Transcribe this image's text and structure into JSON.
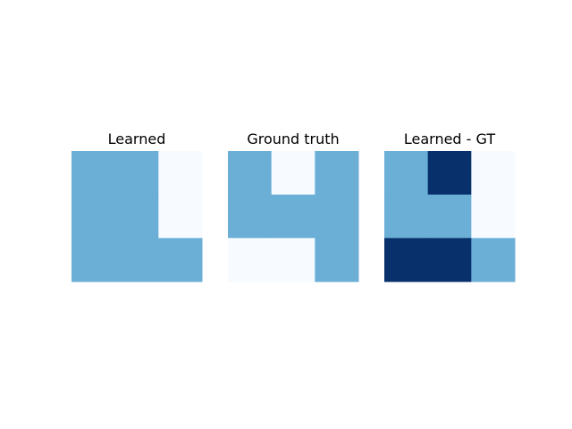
{
  "chart_data": [
    {
      "type": "heatmap",
      "title": "Learned",
      "colormap": "Blues",
      "vmin": 0,
      "vmax": 2,
      "axes_visible": false,
      "grid": [
        [
          1,
          1,
          0
        ],
        [
          1,
          1,
          0
        ],
        [
          1,
          1,
          1
        ]
      ]
    },
    {
      "type": "heatmap",
      "title": "Ground truth",
      "colormap": "Blues",
      "vmin": 0,
      "vmax": 2,
      "axes_visible": false,
      "grid": [
        [
          1,
          0,
          1
        ],
        [
          1,
          1,
          1
        ],
        [
          0,
          0,
          1
        ]
      ]
    },
    {
      "type": "heatmap",
      "title": "Learned - GT",
      "colormap": "Blues",
      "vmin": 0,
      "vmax": 2,
      "axes_visible": false,
      "grid": [
        [
          1,
          2,
          0
        ],
        [
          1,
          1,
          0
        ],
        [
          2,
          2,
          1
        ]
      ]
    }
  ],
  "colors": {
    "level_0": "#f7fbff",
    "level_1": "#6baed6",
    "level_2": "#08306b"
  }
}
